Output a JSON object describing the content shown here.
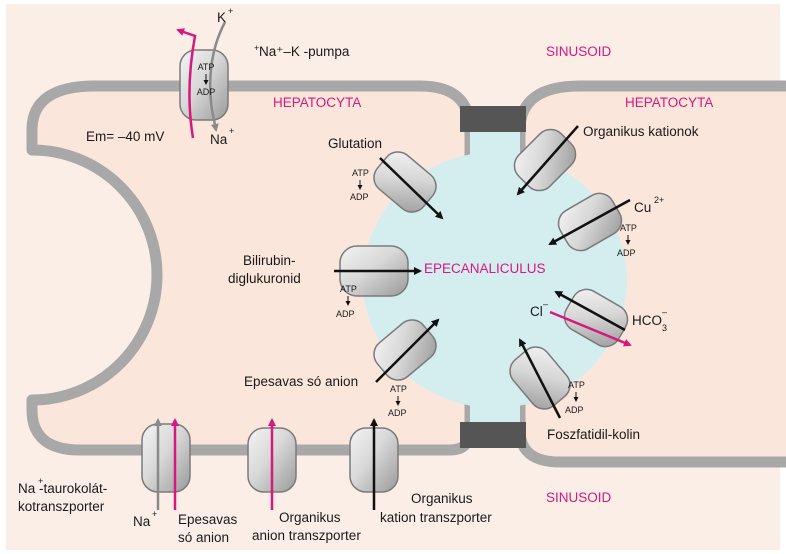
{
  "colors": {
    "background": "#fbeee6",
    "membrane": "#a8a8a8",
    "canaliculus": "#d4eef0",
    "tight_junction": "#555555",
    "accent": "#d6187f",
    "arrow": "#111111"
  },
  "labels": {
    "sinusoid_top": "SINUSOID",
    "sinusoid_bottom": "SINUSOID",
    "hepatocyta_left": "HEPATOCYTA",
    "hepatocyta_right": "HEPATOCYTA",
    "epecanaliculus": "EPECANALICULUS",
    "membrane_potential": "Em= –40 mV"
  },
  "pump": {
    "label": "Na⁺–K -pumpa",
    "k_ion": "K",
    "na_ion": "Na",
    "atp": "ATP",
    "adp": "ADP"
  },
  "canalicular_transporters": {
    "glutation": "Glutation",
    "bilirubin_line1": "Bilirubin-",
    "bilirubin_line2": "diglukuronid",
    "epesavas_so_anion": "Epesavas só anion",
    "organikus_kationok": "Organikus kationok",
    "cu": "Cu",
    "cl": "Cl",
    "hco3": "HCO",
    "foszfatidil_kolin": "Foszfatidil-kolin",
    "atp": "ATP",
    "adp": "ADP"
  },
  "basolateral_transporters": {
    "na_taurocholate_line1": "Na -taurokolát-",
    "na_taurocholate_line2": "kotranszporter",
    "na": "Na",
    "epesavas_line1": "Epesavas",
    "epesavas_line2": "só anion",
    "org_anion_line1": "Organikus",
    "org_anion_line2": "anion transzporter",
    "org_kation_line1": "Organikus",
    "org_kation_line2": "kation transzporter"
  }
}
